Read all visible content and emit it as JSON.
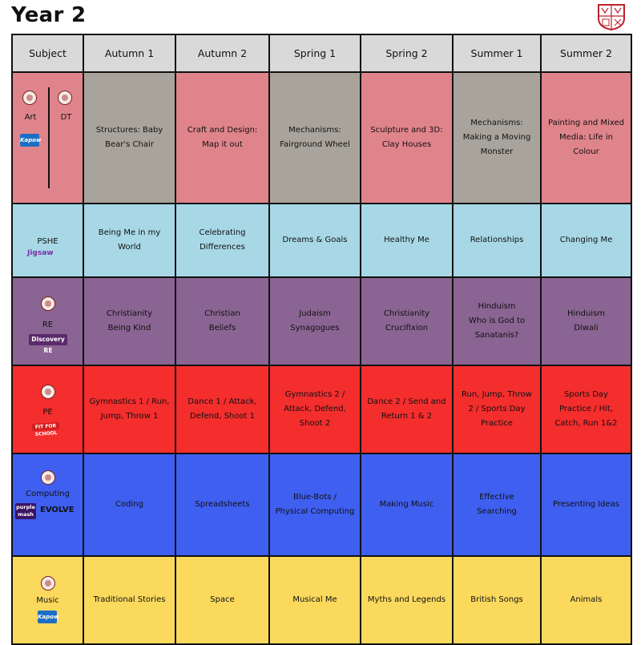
{
  "page": {
    "title": "Year 2"
  },
  "colors": {
    "header": "#d9d9d9",
    "art": "#e0848b",
    "dt": "#a8a49c",
    "pshe": "#a8d8e6",
    "re": "#8a6492",
    "pe": "#f42d2d",
    "computing": "#3f5ff0",
    "music": "#fad95d"
  },
  "table": {
    "headers": [
      "Subject",
      "Autumn 1",
      "Autumn 2",
      "Spring 1",
      "Spring 2",
      "Summer 1",
      "Summer 2"
    ],
    "rows": [
      {
        "subject": "Art",
        "subject2": "DT",
        "badges": [
          "Kapow"
        ],
        "cells": [
          {
            "text": "Structures: Baby\nBear's Chair",
            "color": "dt"
          },
          {
            "text": "Craft and Design:\nMap it out",
            "color": "art"
          },
          {
            "text": "Mechanisms:\nFairground Wheel",
            "color": "dt"
          },
          {
            "text": "Sculpture and 3D:\nClay Houses",
            "color": "art"
          },
          {
            "text": "Mechanisms:\nMaking a Moving\nMonster",
            "color": "dt"
          },
          {
            "text": "Painting and Mixed\nMedia: Life in\nColour",
            "color": "art"
          }
        ]
      },
      {
        "subject": "PSHE",
        "badges": [
          "Jigsaw"
        ],
        "cells": [
          {
            "text": "Being Me in my\nWorld",
            "color": "pshe"
          },
          {
            "text": "Celebrating\nDifferences",
            "color": "pshe"
          },
          {
            "text": "Dreams & Goals",
            "color": "pshe"
          },
          {
            "text": "Healthy Me",
            "color": "pshe"
          },
          {
            "text": "Relationships",
            "color": "pshe"
          },
          {
            "text": "Changing Me",
            "color": "pshe"
          }
        ]
      },
      {
        "subject": "RE",
        "badges": [
          "Discovery RE"
        ],
        "cells": [
          {
            "text": "Christianity\nBeing Kind",
            "color": "re"
          },
          {
            "text": "Christian\nBeliefs",
            "color": "re"
          },
          {
            "text": "Judaism\nSynagogues",
            "color": "re"
          },
          {
            "text": "Christianity\nCrucifixion",
            "color": "re"
          },
          {
            "text": "Hinduism\nWho is God to\nSanatanis?",
            "color": "re"
          },
          {
            "text": "Hinduism\nDiwali",
            "color": "re"
          }
        ]
      },
      {
        "subject": "PE",
        "badges": [
          "FIT FOR SCHOOL"
        ],
        "cells": [
          {
            "text": "Gymnastics 1 / Run,\nJump, Throw 1",
            "color": "pe"
          },
          {
            "text": "Dance 1 / Attack,\nDefend, Shoot 1",
            "color": "pe"
          },
          {
            "text": "Gymnastics 2 /\nAttack, Defend,\nShoot 2",
            "color": "pe"
          },
          {
            "text": "Dance 2 / Send and\nReturn 1 & 2",
            "color": "pe"
          },
          {
            "text": "Run, Jump, Throw\n2 / Sports Day\nPractice",
            "color": "pe"
          },
          {
            "text": "Sports Day\nPractice / Hit,\nCatch, Run 1&2",
            "color": "pe"
          }
        ]
      },
      {
        "subject": "Computing",
        "badges": [
          "purple mash",
          "EVOLVE"
        ],
        "cells": [
          {
            "text": "Coding",
            "color": "computing"
          },
          {
            "text": "Spreadsheets",
            "color": "computing"
          },
          {
            "text": "Blue-Bots /\nPhysical Computing",
            "color": "computing"
          },
          {
            "text": "Making Music",
            "color": "computing"
          },
          {
            "text": "Effective\nSearching",
            "color": "computing"
          },
          {
            "text": "Presenting Ideas",
            "color": "computing"
          }
        ]
      },
      {
        "subject": "Music",
        "badges": [
          "Kapow"
        ],
        "cells": [
          {
            "text": "Traditional Stories",
            "color": "music"
          },
          {
            "text": "Space",
            "color": "music"
          },
          {
            "text": "Musical Me",
            "color": "music"
          },
          {
            "text": "Myths and Legends",
            "color": "music"
          },
          {
            "text": "British Songs",
            "color": "music"
          },
          {
            "text": "Animals",
            "color": "music"
          }
        ]
      }
    ]
  }
}
